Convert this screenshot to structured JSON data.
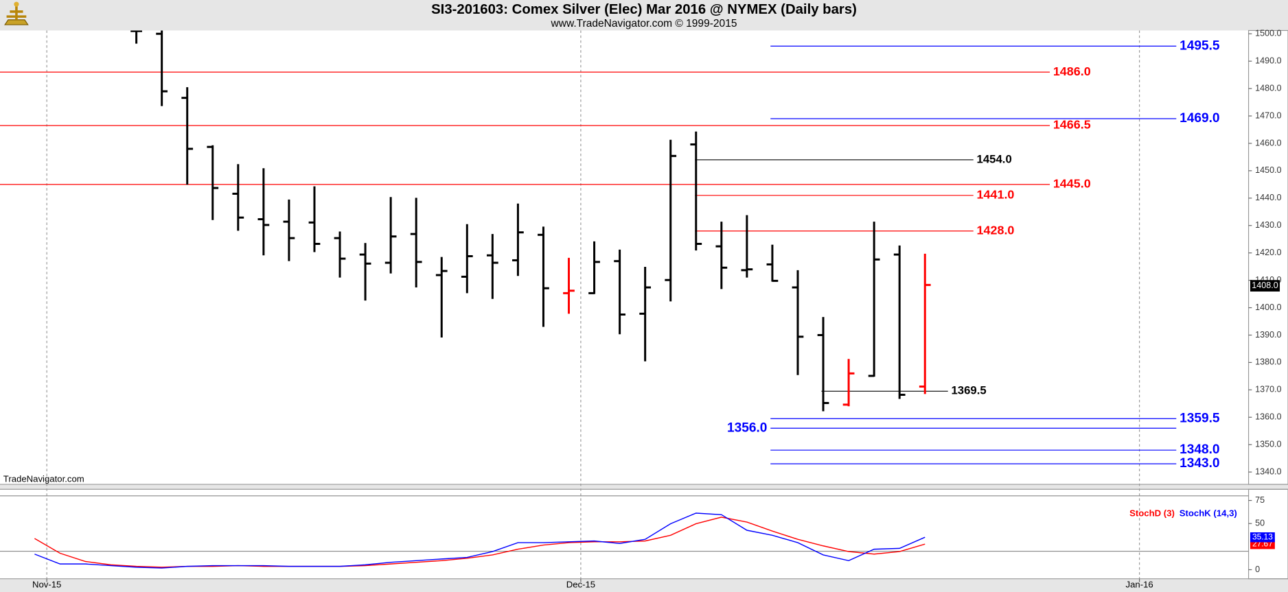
{
  "chart_data": {
    "type": "ohlc",
    "title": "SI3-201603:  Comex Silver (Elec) Mar 2016 @ NYMEX  (Daily bars)",
    "subtitle": "www.TradeNavigator.com © 1999-2015",
    "watermark": "TradeNavigator.com",
    "xlim": [
      -5.36,
      43.72
    ],
    "xticks": [
      {
        "value": -3.52,
        "label": "Nov-15"
      },
      {
        "value": 17.47,
        "label": "Dec-15"
      },
      {
        "value": 39.43,
        "label": "Jan-16"
      }
    ],
    "ylim": [
      1335.5,
      1501.2
    ],
    "yticks": [
      {
        "value": 1340,
        "label": "1340.0"
      },
      {
        "value": 1350,
        "label": "1350.0"
      },
      {
        "value": 1360,
        "label": "1360.0"
      },
      {
        "value": 1370,
        "label": "1370.0"
      },
      {
        "value": 1380,
        "label": "1380.0"
      },
      {
        "value": 1390,
        "label": "1390.0"
      },
      {
        "value": 1400,
        "label": "1400.0"
      },
      {
        "value": 1410,
        "label": "1410.0"
      },
      {
        "value": 1420,
        "label": "1420.0"
      },
      {
        "value": 1430,
        "label": "1430.0"
      },
      {
        "value": 1440,
        "label": "1440.0"
      },
      {
        "value": 1450,
        "label": "1450.0"
      },
      {
        "value": 1460,
        "label": "1460.0"
      },
      {
        "value": 1470,
        "label": "1470.0"
      },
      {
        "value": 1480,
        "label": "1480.0"
      },
      {
        "value": 1490,
        "label": "1490.0"
      },
      {
        "value": 1500,
        "label": "1500.0"
      }
    ],
    "bars": {
      "x": [
        0,
        1,
        2,
        3,
        4,
        5,
        6,
        7,
        8,
        9,
        10,
        11,
        12,
        13,
        14,
        15,
        16,
        17,
        18,
        19,
        20,
        21,
        22,
        23,
        24,
        25,
        26,
        27,
        28,
        29,
        30,
        31
      ],
      "open": [
        1501,
        1500,
        1476.6,
        1458.7,
        1441.6,
        1432.3,
        1431.4,
        1431.1,
        1425.4,
        1419.4,
        1416.4,
        1426.9,
        1411.9,
        1411.3,
        1419.1,
        1417.3,
        1426.6,
        1405.3,
        1405.3,
        1417,
        1397.8,
        1410.1,
        1459.6,
        1422.4,
        1413.7,
        1415.8,
        1407.4,
        1390,
        1364.6,
        1375.1,
        1419.4,
        1371.2
      ],
      "high": [
        1502,
        1503,
        1480.5,
        1459.3,
        1452.4,
        1450.9,
        1439.5,
        1444.3,
        1427.8,
        1423.6,
        1440.4,
        1440.1,
        1418.5,
        1430.5,
        1426.9,
        1438,
        1429.6,
        1418.2,
        1424.2,
        1421.2,
        1414.9,
        1461.3,
        1464.3,
        1431.4,
        1433.8,
        1423,
        1413.7,
        1396.6,
        1381.3,
        1431.4,
        1422.7,
        1419.7
      ],
      "low": [
        1496.4,
        1473.6,
        1444.9,
        1432,
        1428.1,
        1419.1,
        1417,
        1420.3,
        1411,
        1402.6,
        1412.5,
        1407.4,
        1389.1,
        1405.3,
        1403.2,
        1411.6,
        1393,
        1397.8,
        1405,
        1390.3,
        1380.4,
        1402.3,
        1420.9,
        1406.8,
        1411,
        1409.5,
        1375.4,
        1362.2,
        1364,
        1374.8,
        1366.7,
        1368.5
      ],
      "close": [
        1501,
        1479,
        1458,
        1443.7,
        1432.9,
        1430.2,
        1425.4,
        1423.3,
        1417.9,
        1416.1,
        1426,
        1416.7,
        1413.4,
        1418.8,
        1416.4,
        1427.5,
        1407.1,
        1406.2,
        1416.7,
        1397.5,
        1407.4,
        1455.4,
        1423.3,
        1414.6,
        1414,
        1409.8,
        1389.4,
        1365.2,
        1376,
        1417.6,
        1368.2,
        1408.3
      ],
      "colors": [
        "#000000",
        "#000000",
        "#000000",
        "#000000",
        "#000000",
        "#000000",
        "#000000",
        "#000000",
        "#000000",
        "#000000",
        "#000000",
        "#000000",
        "#000000",
        "#000000",
        "#000000",
        "#000000",
        "#000000",
        "#ff0000",
        "#000000",
        "#000000",
        "#000000",
        "#000000",
        "#000000",
        "#000000",
        "#000000",
        "#000000",
        "#000000",
        "#000000",
        "#ff0000",
        "#000000",
        "#000000",
        "#ff0000"
      ]
    },
    "last_price": {
      "value": 1408.0,
      "label": "1408.0"
    },
    "levels": [
      {
        "value": 1495.5,
        "label": "1495.5",
        "color": "#0000ff"
      },
      {
        "value": 1486.0,
        "label": "1486.0",
        "color": "#ff0000"
      },
      {
        "value": 1469.0,
        "label": "1469.0",
        "color": "#0000ff"
      },
      {
        "value": 1466.5,
        "label": "1466.5",
        "color": "#ff0000"
      },
      {
        "value": 1454.0,
        "label": "1454.0",
        "color": "#000000"
      },
      {
        "value": 1445.0,
        "label": "1445.0",
        "color": "#ff0000"
      },
      {
        "value": 1441.0,
        "label": "1441.0",
        "color": "#ff0000"
      },
      {
        "value": 1428.0,
        "label": "1428.0",
        "color": "#ff0000"
      },
      {
        "value": 1369.5,
        "label": "1369.5",
        "color": "#000000"
      },
      {
        "value": 1359.5,
        "label": "1359.5",
        "color": "#0000ff"
      },
      {
        "value": 1356.0,
        "label": "1356.0",
        "color": "#0000ff"
      },
      {
        "value": 1348.0,
        "label": "1348.0",
        "color": "#0000ff"
      },
      {
        "value": 1343.0,
        "label": "1343.0",
        "color": "#0000ff"
      }
    ],
    "stochastic": {
      "ylim": [
        -9.8,
        87.1
      ],
      "yticks": [
        0,
        50,
        75
      ],
      "bands": [
        80,
        20
      ],
      "x": [
        -4,
        -3,
        -2,
        -1,
        0,
        1,
        2,
        3,
        4,
        5,
        6,
        7,
        8,
        9,
        10,
        11,
        12,
        13,
        14,
        15,
        16,
        17,
        18,
        19,
        20,
        21,
        22,
        23,
        24,
        25,
        26,
        27,
        28,
        29,
        30,
        31
      ],
      "series": [
        {
          "name": "StochD (3)",
          "color": "#ff0000",
          "last_label": "27.67",
          "values": [
            33.8,
            17.8,
            8.9,
            5.3,
            3.6,
            2.7,
            3.6,
            3.6,
            4.4,
            3.6,
            3.6,
            3.6,
            3.6,
            4.4,
            6.2,
            8,
            9.8,
            12.4,
            16,
            22.2,
            26.7,
            29.3,
            30.2,
            30.2,
            31.1,
            37.3,
            49.8,
            56.9,
            51.6,
            41.8,
            32.9,
            25.8,
            19.6,
            16.9,
            19.6,
            27.67
          ]
        },
        {
          "name": "StochK (14,3)",
          "color": "#0000ff",
          "last_label": "35.13",
          "values": [
            16.9,
            6.2,
            6.2,
            4.4,
            2.7,
            1.8,
            3.6,
            4.4,
            4.4,
            4.4,
            3.6,
            3.6,
            3.6,
            5.3,
            8,
            9.8,
            11.6,
            13.3,
            19.6,
            29.3,
            29.3,
            30.2,
            31.1,
            28.4,
            32.9,
            49.8,
            61.3,
            59.6,
            42.7,
            37.3,
            29.3,
            16,
            9.8,
            22.2,
            23.1,
            35.13
          ]
        }
      ]
    }
  }
}
